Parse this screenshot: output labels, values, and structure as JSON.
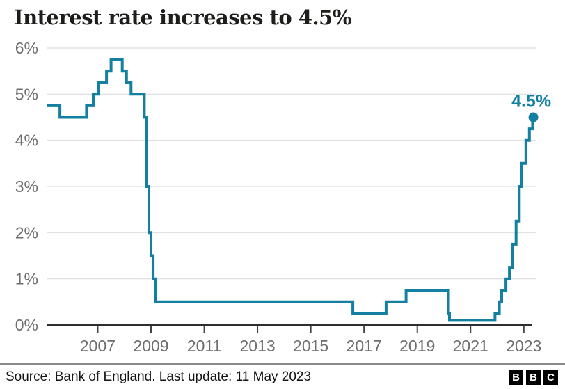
{
  "title": "Interest rate increases to 4.5%",
  "footer": {
    "source": "Source: Bank of England. Last update: 11 May 2023",
    "logo_letters": [
      "B",
      "B",
      "C"
    ]
  },
  "colors": {
    "line": "#1380A1",
    "annotation": "#1380A1",
    "grid": "#e2e2e2",
    "axis": "#2e2e2e",
    "tick": "#444444",
    "tick_label": "#6e6e6e",
    "title": "#1d1d1b",
    "footer_text": "#141414",
    "logo_bg": "#000000"
  },
  "chart_data": {
    "type": "line",
    "step": true,
    "title": "Interest rate increases to 4.5%",
    "series_name": "Bank of England interest rate",
    "unit": "%",
    "grid": true,
    "x_axis": {
      "range": [
        2005.08,
        2023.45
      ],
      "ticks": [
        2007,
        2009,
        2011,
        2013,
        2015,
        2017,
        2019,
        2021,
        2023
      ],
      "tick_labels": [
        "2007",
        "2009",
        "2011",
        "2013",
        "2015",
        "2017",
        "2019",
        "2021",
        "2023"
      ]
    },
    "y_axis": {
      "range": [
        0,
        6
      ],
      "ticks": [
        0,
        1,
        2,
        3,
        4,
        5,
        6
      ],
      "tick_labels": [
        "0%",
        "1%",
        "2%",
        "3%",
        "4%",
        "5%",
        "6%"
      ]
    },
    "points": [
      [
        2005.08,
        4.75
      ],
      [
        2005.58,
        4.5
      ],
      [
        2006.58,
        4.75
      ],
      [
        2006.83,
        5.0
      ],
      [
        2007.04,
        5.25
      ],
      [
        2007.33,
        5.5
      ],
      [
        2007.5,
        5.75
      ],
      [
        2007.92,
        5.5
      ],
      [
        2008.08,
        5.25
      ],
      [
        2008.25,
        5.0
      ],
      [
        2008.75,
        4.5
      ],
      [
        2008.83,
        3.0
      ],
      [
        2008.92,
        2.0
      ],
      [
        2009.0,
        1.5
      ],
      [
        2009.08,
        1.0
      ],
      [
        2009.17,
        0.5
      ],
      [
        2016.58,
        0.25
      ],
      [
        2017.83,
        0.5
      ],
      [
        2018.58,
        0.75
      ],
      [
        2020.17,
        0.25
      ],
      [
        2020.21,
        0.1
      ],
      [
        2021.92,
        0.25
      ],
      [
        2022.08,
        0.5
      ],
      [
        2022.17,
        0.75
      ],
      [
        2022.33,
        1.0
      ],
      [
        2022.46,
        1.25
      ],
      [
        2022.58,
        1.75
      ],
      [
        2022.71,
        2.25
      ],
      [
        2022.83,
        3.0
      ],
      [
        2022.92,
        3.5
      ],
      [
        2023.08,
        4.0
      ],
      [
        2023.21,
        4.25
      ],
      [
        2023.33,
        4.5
      ]
    ],
    "end_point": {
      "x": 2023.36,
      "y": 4.5,
      "label": "4.5%"
    }
  }
}
